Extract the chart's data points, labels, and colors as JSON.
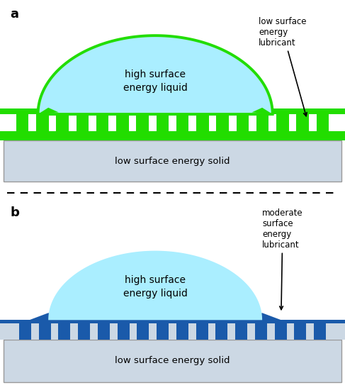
{
  "bg_color": "#ffffff",
  "panel_a": {
    "label": "a",
    "liquid_color": "#aaeeff",
    "lubricant_color": "#22dd00",
    "solid_color": "#ccd8e4",
    "solid_border": "#999999",
    "liquid_label": "high surface\nenergy liquid",
    "lubricant_label": "low surface\nenergy\nlubricant",
    "solid_label": "low surface energy solid",
    "text_color": "#000000"
  },
  "panel_b": {
    "label": "b",
    "liquid_color": "#aaeeff",
    "lubricant_color": "#1a5aaa",
    "solid_color": "#ccd8e4",
    "solid_border": "#999999",
    "liquid_label": "high surface\nenergy liquid",
    "lubricant_label": "moderate\nsurface\nenergy\nlubricant",
    "solid_label": "low surface energy solid",
    "text_color": "#000000"
  },
  "divider_color": "#000000"
}
